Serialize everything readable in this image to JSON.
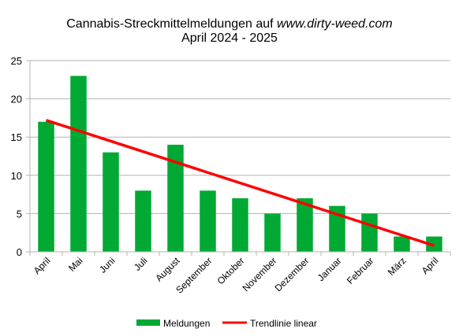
{
  "chart_data": {
    "type": "bar",
    "title": {
      "line1_prefix": "Cannabis-Streckmittelmeldungen auf ",
      "line1_site": "www.dirty-weed.com",
      "line2": "April 2024 - 2025"
    },
    "xlabel": "",
    "ylabel": "",
    "categories": [
      "April",
      "Mai",
      "Juni",
      "Juli",
      "August",
      "September",
      "Oktober",
      "November",
      "Dezember",
      "Januar",
      "Februar",
      "März",
      "April"
    ],
    "series": [
      {
        "name": "Meldungen",
        "values": [
          17,
          23,
          13,
          8,
          14,
          8,
          7,
          5,
          7,
          6,
          5,
          2,
          2
        ],
        "color": "#00a933"
      }
    ],
    "trendline": {
      "name": "Trendlinie linear",
      "type": "linear",
      "start": 17.2,
      "end": 0.8,
      "color": "#ff0000"
    },
    "ylim": [
      0,
      25
    ],
    "yticks": [
      0,
      5,
      10,
      15,
      20,
      25
    ],
    "grid": true,
    "legend_position": "bottom",
    "axis_color": "#b3b3b3"
  }
}
